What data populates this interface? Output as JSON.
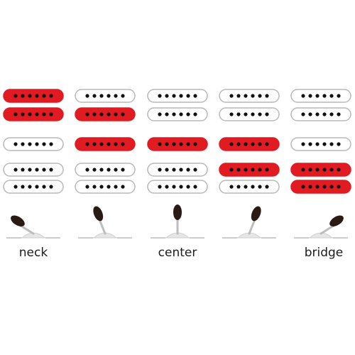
{
  "colors": {
    "active": "#e11b22",
    "inactive": "#ffffff",
    "outline": "#b8b8b8",
    "pole": "#111111",
    "switch_tip": "#2a1a14",
    "switch_base": "#e6e6e6",
    "line": "#9a9a9a"
  },
  "positions": [
    {
      "label": "neck",
      "switch": "neck",
      "pickups": {
        "neck_humbucker": "active",
        "middle_single": "inactive",
        "bridge_humbucker": "inactive"
      }
    },
    {
      "label": "",
      "switch": "neck-mid",
      "pickups": {
        "neck_humbucker": "inner-coil",
        "middle_single": "active",
        "bridge_humbucker": "inactive"
      }
    },
    {
      "label": "center",
      "switch": "center",
      "pickups": {
        "neck_humbucker": "inactive",
        "middle_single": "active",
        "bridge_humbucker": "inactive"
      }
    },
    {
      "label": "",
      "switch": "mid-bridge",
      "pickups": {
        "neck_humbucker": "inactive",
        "middle_single": "active",
        "bridge_humbucker": "inner-coil"
      }
    },
    {
      "label": "bridge",
      "switch": "bridge",
      "pickups": {
        "neck_humbucker": "inactive",
        "middle_single": "inactive",
        "bridge_humbucker": "active"
      }
    }
  ]
}
